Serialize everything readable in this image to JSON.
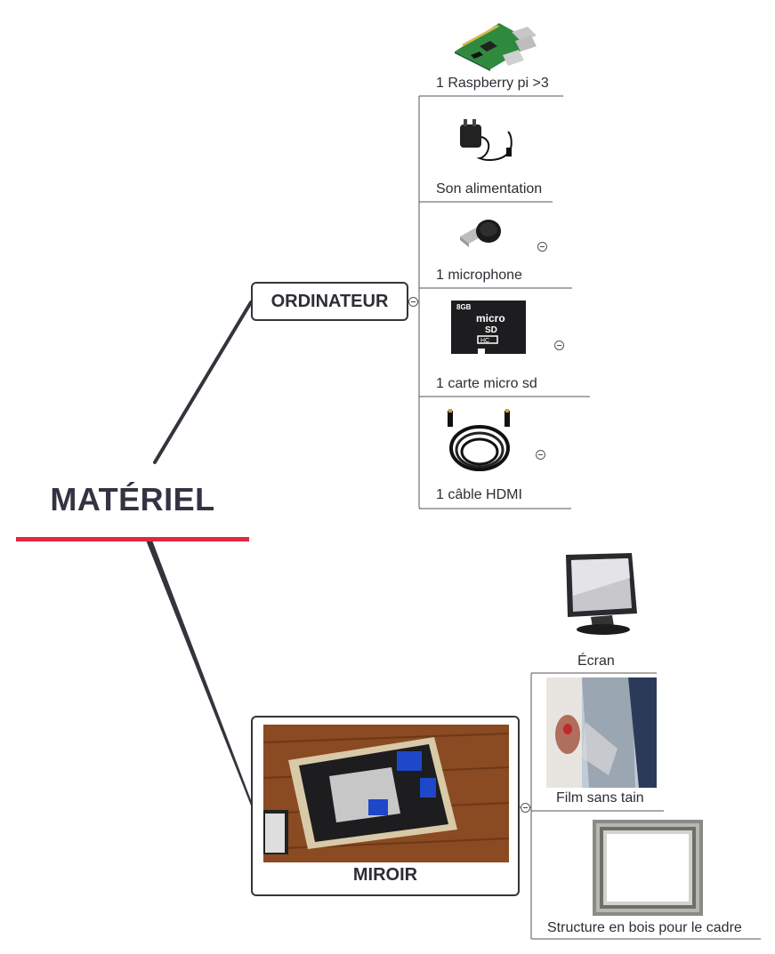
{
  "central": {
    "title": "MATÉRIEL"
  },
  "ordinateur": {
    "label": "ORDINATEUR",
    "items": [
      {
        "label": "1 Raspberry pi >3",
        "image": "raspberry-pi-board"
      },
      {
        "label": "Son alimentation",
        "image": "power-adapter"
      },
      {
        "label": "1 microphone",
        "image": "usb-microphone"
      },
      {
        "label": "1 carte micro sd",
        "image": "micro-sd-card"
      },
      {
        "label": "1 câble HDMI",
        "image": "hdmi-cable"
      }
    ]
  },
  "miroir": {
    "label": "MIROIR",
    "image": "mirror-build-photo",
    "items": [
      {
        "label": "Écran",
        "image": "lcd-monitor"
      },
      {
        "label": "Film sans tain",
        "image": "mirror-film-photo"
      },
      {
        "label": "Structure en bois pour le cadre",
        "image": "wooden-frame"
      }
    ]
  },
  "colors": {
    "accent": "#e0283f",
    "line": "#34343c",
    "text": "#2d2d35"
  }
}
